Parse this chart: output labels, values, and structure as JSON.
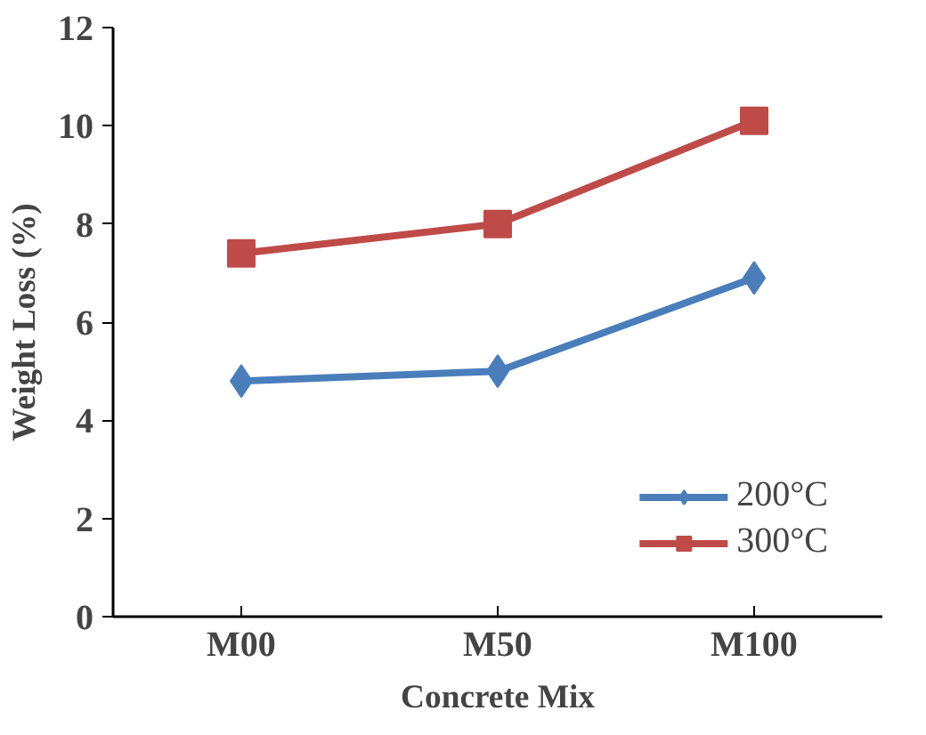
{
  "chart_data": {
    "type": "line",
    "xlabel": "Concrete Mix",
    "ylabel": "Weight Loss (%)",
    "categories": [
      "M00",
      "M50",
      "M100"
    ],
    "series": [
      {
        "name": "200°C",
        "color": "#4a7ebb",
        "values": [
          4.8,
          5.0,
          6.9
        ],
        "marker": "diamond"
      },
      {
        "name": "300°C",
        "color": "#be4b48",
        "values": [
          7.4,
          8.0,
          10.1
        ],
        "marker": "square"
      }
    ],
    "ylim": [
      0,
      12
    ],
    "yticks": [
      0,
      2,
      4,
      6,
      8,
      10,
      12
    ],
    "grid": false,
    "legend": "bottom right",
    "line_style": "solid"
  }
}
